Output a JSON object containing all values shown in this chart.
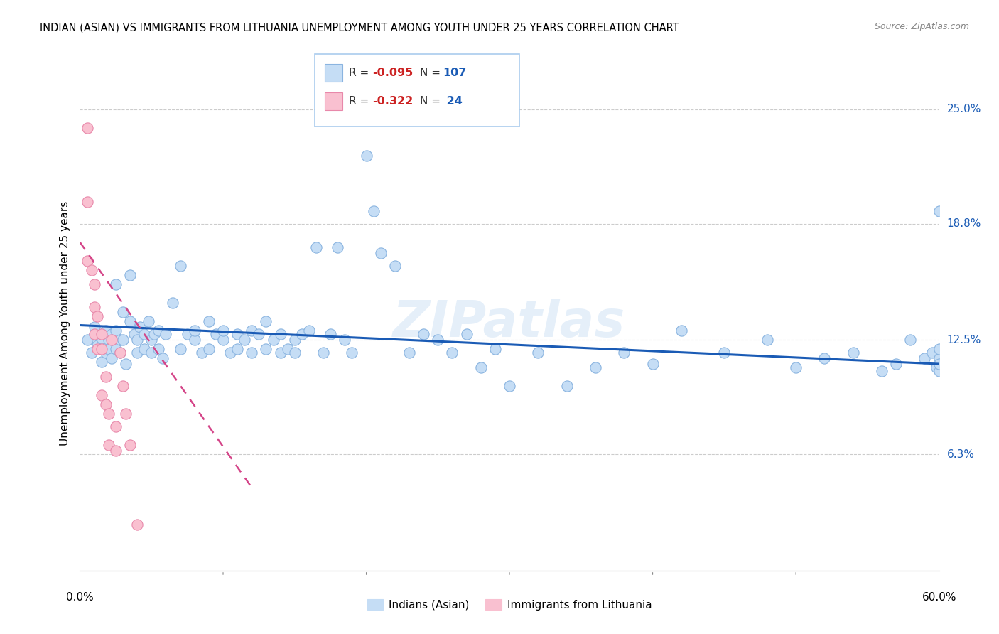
{
  "title": "INDIAN (ASIAN) VS IMMIGRANTS FROM LITHUANIA UNEMPLOYMENT AMONG YOUTH UNDER 25 YEARS CORRELATION CHART",
  "source": "Source: ZipAtlas.com",
  "ylabel": "Unemployment Among Youth under 25 years",
  "ytick_labels": [
    "6.3%",
    "12.5%",
    "18.8%",
    "25.0%"
  ],
  "ytick_values": [
    0.063,
    0.125,
    0.188,
    0.25
  ],
  "xmin": 0.0,
  "xmax": 0.6,
  "ymin": 0.0,
  "ymax": 0.268,
  "color_blue": "#c5ddf5",
  "color_blue_edge": "#8ab4e0",
  "color_pink": "#f9c0d0",
  "color_pink_edge": "#e888aa",
  "color_line_blue": "#1a5bb5",
  "color_line_pink": "#d44488",
  "legend_label1": "Indians (Asian)",
  "legend_label2": "Immigrants from Lithuania",
  "watermark": "ZIPatlas",
  "blue_scatter_x": [
    0.005,
    0.008,
    0.01,
    0.01,
    0.012,
    0.015,
    0.015,
    0.015,
    0.018,
    0.018,
    0.02,
    0.02,
    0.022,
    0.022,
    0.025,
    0.025,
    0.025,
    0.028,
    0.028,
    0.03,
    0.03,
    0.032,
    0.035,
    0.035,
    0.038,
    0.04,
    0.04,
    0.042,
    0.045,
    0.045,
    0.048,
    0.05,
    0.05,
    0.052,
    0.055,
    0.055,
    0.058,
    0.06,
    0.065,
    0.07,
    0.07,
    0.075,
    0.08,
    0.08,
    0.085,
    0.09,
    0.09,
    0.095,
    0.1,
    0.1,
    0.105,
    0.11,
    0.11,
    0.115,
    0.12,
    0.12,
    0.125,
    0.13,
    0.13,
    0.135,
    0.14,
    0.14,
    0.145,
    0.15,
    0.15,
    0.155,
    0.16,
    0.165,
    0.17,
    0.175,
    0.18,
    0.185,
    0.19,
    0.2,
    0.205,
    0.21,
    0.22,
    0.23,
    0.24,
    0.25,
    0.26,
    0.27,
    0.28,
    0.29,
    0.3,
    0.32,
    0.34,
    0.36,
    0.38,
    0.4,
    0.42,
    0.45,
    0.48,
    0.5,
    0.52,
    0.54,
    0.56,
    0.57,
    0.58,
    0.59,
    0.595,
    0.598,
    0.6,
    0.6,
    0.6,
    0.6,
    0.6
  ],
  "blue_scatter_y": [
    0.125,
    0.118,
    0.128,
    0.132,
    0.122,
    0.12,
    0.113,
    0.126,
    0.118,
    0.13,
    0.125,
    0.12,
    0.128,
    0.115,
    0.155,
    0.13,
    0.12,
    0.125,
    0.118,
    0.14,
    0.125,
    0.112,
    0.16,
    0.135,
    0.128,
    0.118,
    0.125,
    0.132,
    0.12,
    0.128,
    0.135,
    0.125,
    0.118,
    0.128,
    0.13,
    0.12,
    0.115,
    0.128,
    0.145,
    0.165,
    0.12,
    0.128,
    0.125,
    0.13,
    0.118,
    0.135,
    0.12,
    0.128,
    0.125,
    0.13,
    0.118,
    0.128,
    0.12,
    0.125,
    0.13,
    0.118,
    0.128,
    0.12,
    0.135,
    0.125,
    0.118,
    0.128,
    0.12,
    0.125,
    0.118,
    0.128,
    0.13,
    0.175,
    0.118,
    0.128,
    0.175,
    0.125,
    0.118,
    0.225,
    0.195,
    0.172,
    0.165,
    0.118,
    0.128,
    0.125,
    0.118,
    0.128,
    0.11,
    0.12,
    0.1,
    0.118,
    0.1,
    0.11,
    0.118,
    0.112,
    0.13,
    0.118,
    0.125,
    0.11,
    0.115,
    0.118,
    0.108,
    0.112,
    0.125,
    0.115,
    0.118,
    0.11,
    0.115,
    0.12,
    0.108,
    0.112,
    0.195
  ],
  "pink_scatter_x": [
    0.005,
    0.005,
    0.005,
    0.008,
    0.01,
    0.01,
    0.01,
    0.012,
    0.012,
    0.015,
    0.015,
    0.015,
    0.018,
    0.018,
    0.02,
    0.02,
    0.022,
    0.025,
    0.025,
    0.028,
    0.03,
    0.032,
    0.035,
    0.04
  ],
  "pink_scatter_y": [
    0.24,
    0.2,
    0.168,
    0.163,
    0.155,
    0.143,
    0.128,
    0.138,
    0.12,
    0.128,
    0.12,
    0.095,
    0.105,
    0.09,
    0.085,
    0.068,
    0.125,
    0.078,
    0.065,
    0.118,
    0.1,
    0.085,
    0.068,
    0.025
  ],
  "blue_trend_x": [
    0.0,
    0.6
  ],
  "blue_trend_y": [
    0.133,
    0.112
  ],
  "pink_trend_x": [
    0.0,
    0.12
  ],
  "pink_trend_y": [
    0.178,
    0.045
  ]
}
